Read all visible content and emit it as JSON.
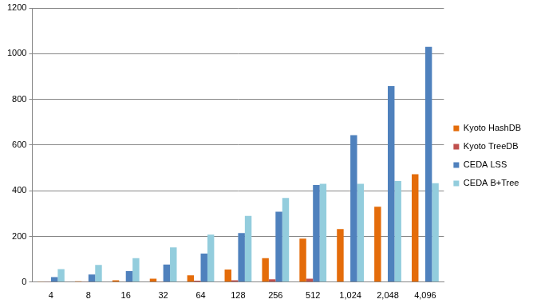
{
  "chart_data": {
    "type": "bar",
    "categories": [
      "4",
      "8",
      "16",
      "32",
      "64",
      "128",
      "256",
      "512",
      "1,024",
      "2,048",
      "4,096"
    ],
    "series": [
      {
        "name": "Kyoto HashDB",
        "color": "#E46C0A",
        "values": [
          3,
          4,
          8,
          15,
          30,
          55,
          105,
          190,
          232,
          330,
          472
        ]
      },
      {
        "name": "Kyoto TreeDB",
        "color": "#C0504D",
        "values": [
          1,
          1,
          2,
          3,
          6,
          8,
          12,
          15,
          null,
          null,
          null
        ]
      },
      {
        "name": "CEDA LSS",
        "color": "#4F81BD",
        "values": [
          22,
          33,
          48,
          77,
          125,
          215,
          308,
          425,
          643,
          858,
          1030
        ]
      },
      {
        "name": "CEDA B+Tree",
        "color": "#93CDDD",
        "values": [
          57,
          75,
          105,
          152,
          208,
          290,
          368,
          430,
          430,
          443,
          433
        ]
      }
    ],
    "ylim": [
      0,
      1200
    ],
    "yticks": [
      0,
      200,
      400,
      600,
      800,
      1000,
      1200
    ],
    "grid": true,
    "legend": "right"
  }
}
